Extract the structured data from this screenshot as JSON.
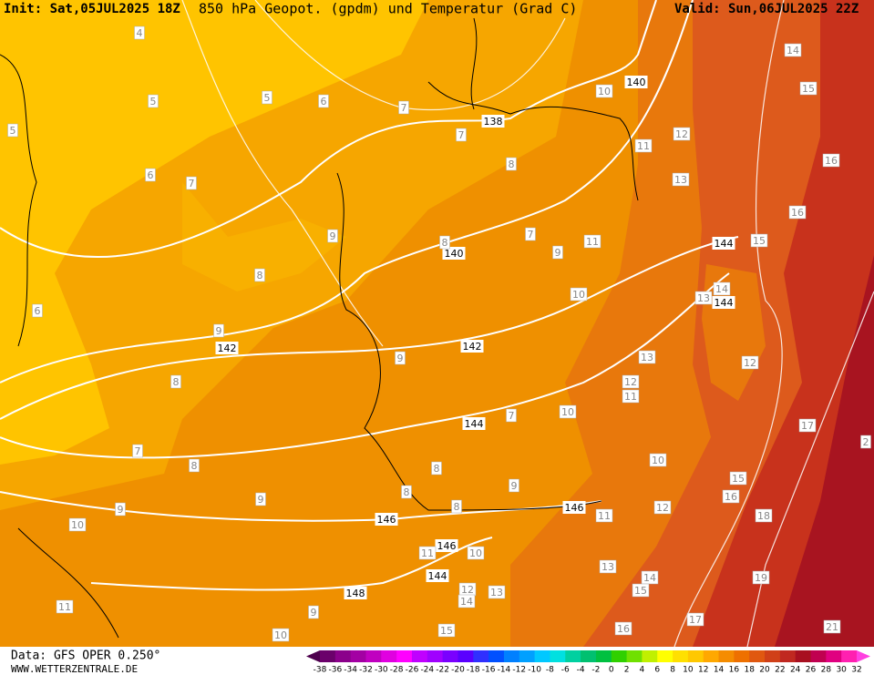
{
  "header": {
    "init": "Init: Sat,05JUL2025 18Z",
    "title": "850 hPa Geopot. (gpdm) und Temperatur (Grad C)",
    "valid": "Valid: Sun,06JUL2025 22Z"
  },
  "footer": {
    "data_source": "Data: GFS OPER 0.250°",
    "website": "WWW.WETTERZENTRALE.DE"
  },
  "contour_labels": [
    4,
    5,
    5,
    6,
    7,
    138,
    7,
    8,
    10,
    140,
    11,
    12,
    13,
    14,
    15,
    16,
    16,
    144,
    15,
    14,
    144,
    13,
    12,
    13,
    12,
    11,
    10,
    144,
    7,
    140,
    8,
    7,
    9,
    11,
    10,
    142,
    142,
    9,
    9,
    8,
    9,
    8,
    6,
    6,
    7,
    5,
    7,
    8,
    9,
    9,
    10,
    146,
    8,
    8,
    9,
    8,
    146,
    11,
    12,
    10,
    15,
    16,
    17,
    18,
    19,
    21,
    146,
    11,
    10,
    144,
    12,
    14,
    13,
    13,
    14,
    15,
    148,
    9,
    11,
    10,
    15,
    17,
    16,
    2
  ],
  "colorbar": {
    "labels": [
      -38,
      -36,
      -34,
      -32,
      -30,
      -28,
      -26,
      -24,
      -22,
      -20,
      -18,
      -16,
      -14,
      -12,
      -10,
      -8,
      -6,
      -4,
      -2,
      0,
      2,
      4,
      6,
      8,
      10,
      12,
      14,
      16,
      18,
      20,
      22,
      24,
      26,
      28,
      30,
      32
    ],
    "colors": [
      "#4d004d",
      "#6b006b",
      "#8b008b",
      "#a300a3",
      "#c000c0",
      "#e000e0",
      "#ff00ff",
      "#c000ff",
      "#a000ff",
      "#7a00ff",
      "#5a00ff",
      "#3030ff",
      "#0050ff",
      "#0080ff",
      "#00a0ff",
      "#00c8ff",
      "#00e0e0",
      "#00d0a0",
      "#00c070",
      "#00c040",
      "#30d000",
      "#70e000",
      "#c0f000",
      "#ffff00",
      "#ffe000",
      "#ffc800",
      "#ffa800",
      "#f58c00",
      "#ee7000",
      "#e05810",
      "#d04018",
      "#c02820",
      "#a81020",
      "#c00050",
      "#e00080",
      "#ff20b0",
      "#ff40e0"
    ]
  }
}
